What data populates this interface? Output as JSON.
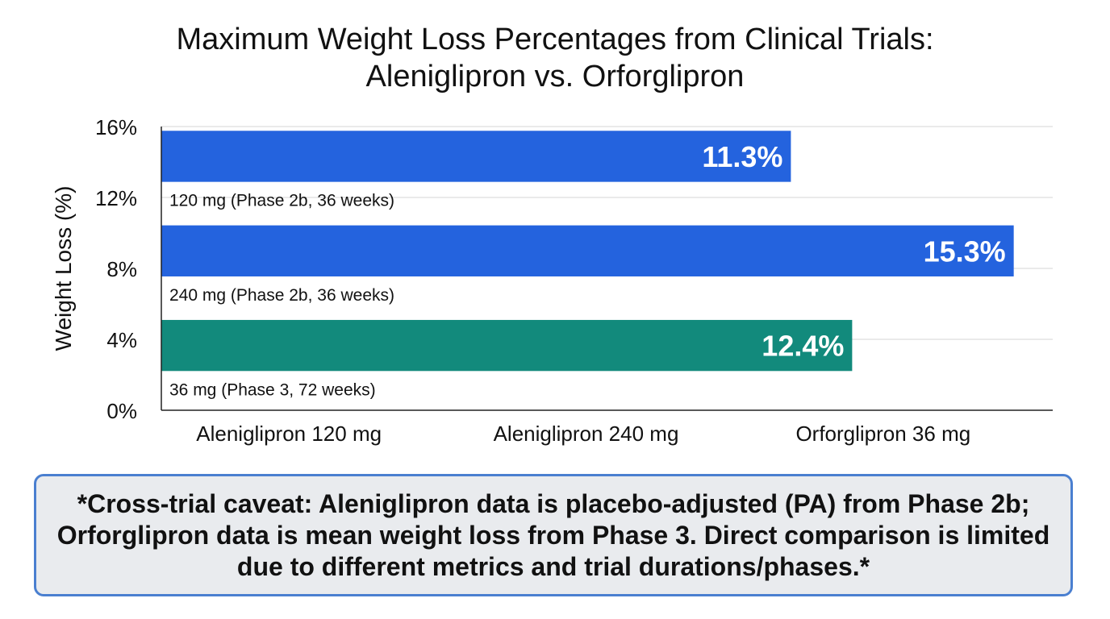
{
  "title_lines": [
    "Maximum Weight Loss Percentages from Clinical Trials:",
    "Aleniglipron vs. Orforglipron"
  ],
  "chart_data": {
    "type": "bar",
    "title": "Maximum Weight Loss Percentages from Clinical Trials: Aleniglipron vs. Orforglipron",
    "xlabel": "",
    "ylabel": "Weight Loss (%)",
    "ylim": [
      0,
      16
    ],
    "yticks": [
      0,
      4,
      8,
      12,
      16
    ],
    "ytick_labels": [
      "0%",
      "4%",
      "8%",
      "12%",
      "16%"
    ],
    "categories": [
      "Aleniglipron 120 mg",
      "Aleniglipron 240 mg",
      "Orforglipron 36 mg"
    ],
    "values": [
      11.3,
      15.3,
      12.4
    ],
    "value_labels": [
      "11.3%",
      "15.3%",
      "12.4%"
    ],
    "bar_annotations": [
      "120 mg (Phase 2b, 36 weeks)",
      "240 mg (Phase 2b, 36 weeks)",
      "36 mg (Phase 3, 72 weeks)"
    ],
    "colors": [
      "#2463de",
      "#2463de",
      "#128a7c"
    ],
    "grid": true
  },
  "caveat": {
    "text": "*Cross-trial caveat: Aleniglipron data is placebo-adjusted (PA) from Phase 2b; Orforglipron data is mean weight loss from Phase 3. Direct comparison is limited due to different metrics and trial durations/phases.*"
  }
}
